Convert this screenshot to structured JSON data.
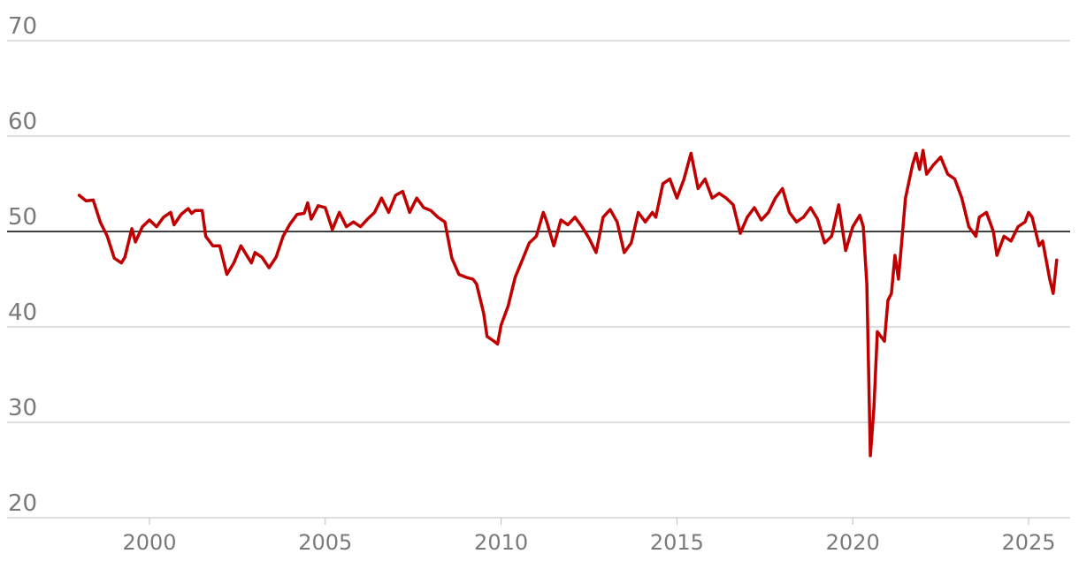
{
  "chart_data": {
    "type": "line",
    "title": "",
    "xlabel": "",
    "ylabel": "",
    "xlim": [
      1997.0,
      2026.2
    ],
    "ylim": [
      20,
      70
    ],
    "y_ticks": [
      "70",
      "60",
      "50",
      "40",
      "30",
      "20"
    ],
    "x_ticks": [
      "2000",
      "2005",
      "2010",
      "2015",
      "2020",
      "2025"
    ],
    "grid": true,
    "reference_line": 50,
    "colors": {
      "series": "#c00000",
      "reference": "#000000",
      "grid": "#bfbfbf",
      "ticks": "#7a7a7a"
    },
    "series": [
      {
        "name": "",
        "points": [
          [
            1998.0,
            53.8
          ],
          [
            1998.2,
            53.2
          ],
          [
            1998.4,
            53.3
          ],
          [
            1998.6,
            51.0
          ],
          [
            1998.8,
            49.5
          ],
          [
            1999.0,
            47.2
          ],
          [
            1999.2,
            46.7
          ],
          [
            1999.3,
            47.3
          ],
          [
            1999.5,
            50.3
          ],
          [
            1999.6,
            48.9
          ],
          [
            1999.8,
            50.5
          ],
          [
            2000.0,
            51.2
          ],
          [
            2000.2,
            50.5
          ],
          [
            2000.4,
            51.5
          ],
          [
            2000.6,
            52.0
          ],
          [
            2000.7,
            50.7
          ],
          [
            2000.9,
            51.8
          ],
          [
            2001.1,
            52.4
          ],
          [
            2001.2,
            51.9
          ],
          [
            2001.3,
            52.2
          ],
          [
            2001.5,
            52.2
          ],
          [
            2001.6,
            49.5
          ],
          [
            2001.8,
            48.5
          ],
          [
            2002.0,
            48.5
          ],
          [
            2002.2,
            45.5
          ],
          [
            2002.4,
            46.7
          ],
          [
            2002.6,
            48.5
          ],
          [
            2002.8,
            47.3
          ],
          [
            2002.9,
            46.7
          ],
          [
            2003.0,
            47.8
          ],
          [
            2003.2,
            47.3
          ],
          [
            2003.4,
            46.2
          ],
          [
            2003.6,
            47.3
          ],
          [
            2003.8,
            49.5
          ],
          [
            2004.0,
            50.8
          ],
          [
            2004.2,
            51.8
          ],
          [
            2004.4,
            51.9
          ],
          [
            2004.5,
            53.0
          ],
          [
            2004.6,
            51.3
          ],
          [
            2004.8,
            52.7
          ],
          [
            2005.0,
            52.5
          ],
          [
            2005.2,
            50.2
          ],
          [
            2005.4,
            52.0
          ],
          [
            2005.6,
            50.5
          ],
          [
            2005.8,
            51.0
          ],
          [
            2006.0,
            50.5
          ],
          [
            2006.2,
            51.3
          ],
          [
            2006.4,
            52.0
          ],
          [
            2006.6,
            53.5
          ],
          [
            2006.8,
            52.0
          ],
          [
            2007.0,
            53.8
          ],
          [
            2007.2,
            54.2
          ],
          [
            2007.4,
            52.0
          ],
          [
            2007.6,
            53.5
          ],
          [
            2007.8,
            52.5
          ],
          [
            2008.0,
            52.2
          ],
          [
            2008.2,
            51.5
          ],
          [
            2008.4,
            51.0
          ],
          [
            2008.6,
            47.2
          ],
          [
            2008.8,
            45.5
          ],
          [
            2009.0,
            45.2
          ],
          [
            2009.2,
            45.0
          ],
          [
            2009.3,
            44.5
          ],
          [
            2009.5,
            41.5
          ],
          [
            2009.6,
            39.0
          ],
          [
            2009.8,
            38.5
          ],
          [
            2009.9,
            38.2
          ],
          [
            2010.0,
            40.2
          ],
          [
            2010.2,
            42.2
          ],
          [
            2010.4,
            45.2
          ],
          [
            2010.6,
            47.0
          ],
          [
            2010.8,
            48.8
          ],
          [
            2011.0,
            49.5
          ],
          [
            2011.2,
            52.0
          ],
          [
            2011.3,
            51.0
          ],
          [
            2011.5,
            48.5
          ],
          [
            2011.7,
            51.2
          ],
          [
            2011.9,
            50.7
          ],
          [
            2012.1,
            51.5
          ],
          [
            2012.3,
            50.5
          ],
          [
            2012.5,
            49.3
          ],
          [
            2012.7,
            47.8
          ],
          [
            2012.9,
            51.5
          ],
          [
            2013.1,
            52.3
          ],
          [
            2013.3,
            51.0
          ],
          [
            2013.5,
            47.8
          ],
          [
            2013.7,
            48.8
          ],
          [
            2013.9,
            52.0
          ],
          [
            2014.1,
            51.0
          ],
          [
            2014.3,
            52.0
          ],
          [
            2014.4,
            51.5
          ],
          [
            2014.6,
            55.0
          ],
          [
            2014.8,
            55.5
          ],
          [
            2015.0,
            53.5
          ],
          [
            2015.2,
            55.5
          ],
          [
            2015.4,
            58.2
          ],
          [
            2015.6,
            54.5
          ],
          [
            2015.8,
            55.5
          ],
          [
            2016.0,
            53.5
          ],
          [
            2016.2,
            54.0
          ],
          [
            2016.4,
            53.5
          ],
          [
            2016.6,
            52.8
          ],
          [
            2016.8,
            49.8
          ],
          [
            2017.0,
            51.5
          ],
          [
            2017.2,
            52.5
          ],
          [
            2017.4,
            51.2
          ],
          [
            2017.6,
            52.0
          ],
          [
            2017.8,
            53.5
          ],
          [
            2018.0,
            54.5
          ],
          [
            2018.2,
            52.0
          ],
          [
            2018.4,
            51.0
          ],
          [
            2018.6,
            51.5
          ],
          [
            2018.8,
            52.5
          ],
          [
            2019.0,
            51.3
          ],
          [
            2019.2,
            48.8
          ],
          [
            2019.4,
            49.5
          ],
          [
            2019.6,
            52.8
          ],
          [
            2019.8,
            48.0
          ],
          [
            2020.0,
            50.5
          ],
          [
            2020.2,
            51.7
          ],
          [
            2020.3,
            50.5
          ],
          [
            2020.4,
            44.5
          ],
          [
            2020.5,
            26.5
          ],
          [
            2020.6,
            31.5
          ],
          [
            2020.7,
            39.5
          ],
          [
            2020.9,
            38.5
          ],
          [
            2021.0,
            42.8
          ],
          [
            2021.1,
            43.5
          ],
          [
            2021.2,
            47.5
          ],
          [
            2021.3,
            45.0
          ],
          [
            2021.5,
            53.5
          ],
          [
            2021.7,
            57.0
          ],
          [
            2021.8,
            58.2
          ],
          [
            2021.9,
            56.5
          ],
          [
            2022.0,
            58.5
          ],
          [
            2022.1,
            56.0
          ],
          [
            2022.3,
            57.0
          ],
          [
            2022.5,
            57.8
          ],
          [
            2022.7,
            56.0
          ],
          [
            2022.9,
            55.5
          ],
          [
            2023.1,
            53.5
          ],
          [
            2023.3,
            50.5
          ],
          [
            2023.5,
            49.5
          ],
          [
            2023.6,
            51.5
          ],
          [
            2023.8,
            52.0
          ],
          [
            2024.0,
            50.0
          ],
          [
            2024.1,
            47.5
          ],
          [
            2024.3,
            49.5
          ],
          [
            2024.5,
            49.0
          ],
          [
            2024.7,
            50.5
          ],
          [
            2024.9,
            51.0
          ],
          [
            2025.0,
            52.0
          ],
          [
            2025.1,
            51.5
          ],
          [
            2025.3,
            48.5
          ],
          [
            2025.4,
            49.0
          ],
          [
            2025.6,
            45.0
          ],
          [
            2025.7,
            43.5
          ],
          [
            2025.8,
            47.0
          ]
        ]
      }
    ]
  }
}
